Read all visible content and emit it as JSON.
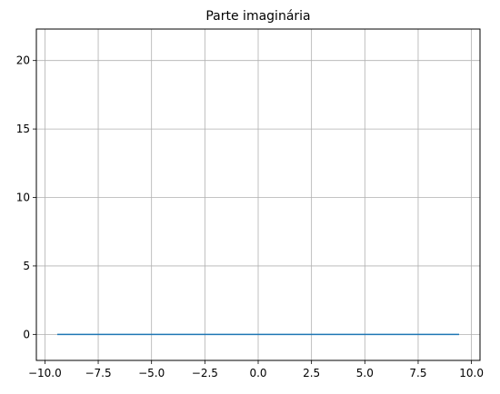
{
  "chart_data": {
    "type": "line",
    "title": "Parte imaginária",
    "xlabel": "",
    "ylabel": "",
    "xlim": [
      -10.4,
      10.4
    ],
    "ylim": [
      -1.9,
      22.3
    ],
    "grid": true,
    "x_ticks": [
      -10.0,
      -7.5,
      -5.0,
      -2.5,
      0.0,
      2.5,
      5.0,
      7.5,
      10.0
    ],
    "x_tick_labels": [
      "−10.0",
      "−7.5",
      "−5.0",
      "−2.5",
      "0.0",
      "2.5",
      "5.0",
      "7.5",
      "10.0"
    ],
    "y_ticks": [
      0,
      5,
      10,
      15,
      20
    ],
    "y_tick_labels": [
      "0",
      "5",
      "10",
      "15",
      "20"
    ],
    "series": [
      {
        "color": "#1f77b4",
        "x": [
          -9.42,
          9.42
        ],
        "y": [
          0,
          0
        ]
      }
    ]
  }
}
